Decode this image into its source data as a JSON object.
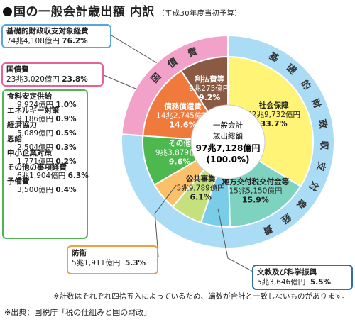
{
  "title": "国の一般会計歳出額 内訳",
  "subtitle": "（平成30年度当初予算）",
  "chart_data": {
    "type": "pie",
    "title": "国の一般会計歳出額 内訳",
    "subtitle": "（平成30年度当初予算）",
    "center_label": [
      "一般会計",
      "歳出総額"
    ],
    "total": "97兆7,128億円",
    "total_pct": "(100.0%)",
    "total_value": 977128,
    "unit": "億円",
    "slices": [
      {
        "name": "社会保障",
        "value": 329732,
        "value_label": "32兆9,732億円",
        "pct": "33.7%",
        "color": "#fff476"
      },
      {
        "name": "地方交付税交付金等",
        "value": 155150,
        "value_label": "15兆5,150億円",
        "pct": "15.9%",
        "color": "#7ed3c0"
      },
      {
        "name": "文教及び科学振興",
        "value": 53646,
        "value_label": "5兆3,646億円",
        "pct": "5.5%",
        "color": "#79cde8"
      },
      {
        "name": "公共事業",
        "value": 59789,
        "value_label": "5兆9,789億円",
        "pct": "6.1%",
        "color": "#c7e07e"
      },
      {
        "name": "防衛",
        "value": 51911,
        "value_label": "5兆1,911億円",
        "pct": "5.3%",
        "color": "#fcbf6a"
      },
      {
        "name": "その他",
        "value": 93879,
        "value_label": "9兆3,879億円",
        "pct": "9.6%",
        "color": "#4cb84e"
      },
      {
        "name": "債務償還費",
        "value": 142745,
        "value_label": "14兆2,745億円",
        "pct": "14.6%",
        "color": "#f07a3c"
      },
      {
        "name": "利払費等",
        "value": 90275,
        "value_label": "9兆275億円",
        "pct": "9.2%",
        "color": "#8a5a44"
      }
    ],
    "outer_ring": [
      {
        "name": "基礎的財政収支対象経費",
        "value": 744108,
        "value_label": "74兆4,108億円",
        "pct": "76.2%",
        "color": "#aadcf6"
      },
      {
        "name": "国債費",
        "value": 233020,
        "value_label": "23兆3,020億円",
        "pct": "23.8%",
        "color": "#f2a2c8"
      }
    ],
    "outer_ring_labels": {
      "base": "基礎的財政収支対象経費",
      "debt": "国債費"
    },
    "other_breakdown": [
      {
        "name": "食料安定供給",
        "value_label": "9,924億円",
        "pct": "1.0%"
      },
      {
        "name": "エネルギー対策",
        "value_label": "9,186億円",
        "pct": "0.9%"
      },
      {
        "name": "経済協力",
        "value_label": "5,089億円",
        "pct": "0.5%"
      },
      {
        "name": "恩給",
        "value_label": "2,504億円",
        "pct": "0.3%"
      },
      {
        "name": "中小企業対策",
        "value_label": "1,771億円",
        "pct": "0.2%"
      },
      {
        "name": "その他の事項経費",
        "value_label": "6兆1,904億円",
        "pct": "6.3%"
      },
      {
        "name": "予備費",
        "value_label": "3,500億円",
        "pct": "0.4%"
      }
    ]
  },
  "note": "※計数はそれぞれ四捨五入によっているため、端数が合計と一致しないものがあります。",
  "source": "※出典：国税庁「税の仕組みと国の財政」",
  "colors": {
    "base_border": "#5aa5e0",
    "debt_border": "#e6609b",
    "other_border": "#50b453",
    "defense_border": "#f0a040",
    "edu_border": "#2f6db0"
  }
}
